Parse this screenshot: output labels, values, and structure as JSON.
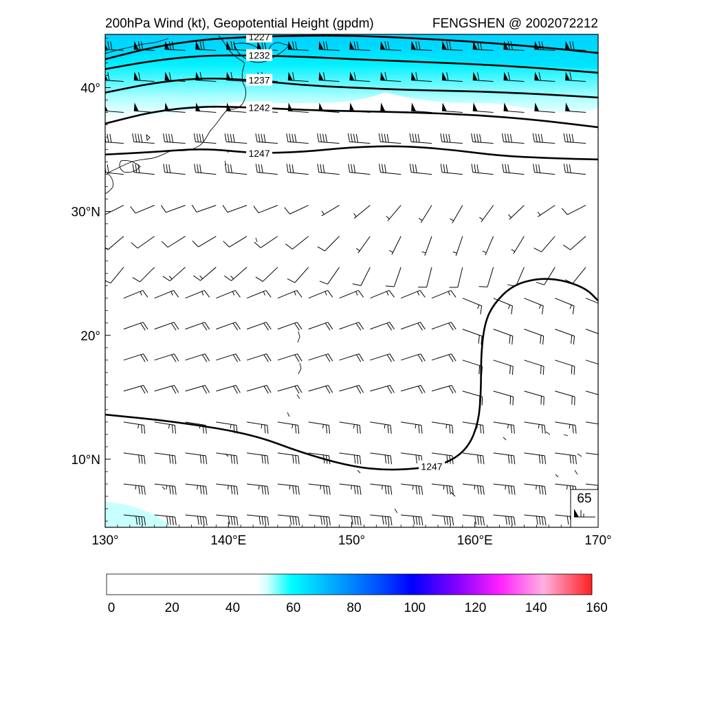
{
  "title_left": "200hPa Wind (kt), Geopotential Height (gpdm)",
  "title_right": "FENGSHEN @ 2002072212",
  "lon_ticks": [
    {
      "value": 130,
      "label": "130°"
    },
    {
      "value": 140,
      "label": "140°E"
    },
    {
      "value": 150,
      "label": "150°"
    },
    {
      "value": 160,
      "label": "160°E"
    },
    {
      "value": 170,
      "label": "170°"
    }
  ],
  "lat_ticks": [
    {
      "value": 40,
      "label": "40°"
    },
    {
      "value": 30,
      "label": "30°N"
    },
    {
      "value": 20,
      "label": "20°"
    },
    {
      "value": 10,
      "label": "10°N"
    }
  ],
  "map_extent": {
    "lon": [
      130,
      170
    ],
    "lat": [
      4.5,
      44.3
    ]
  },
  "contours": [
    {
      "level": 1227,
      "label": "1227",
      "points": [
        [
          130,
          42.3
        ],
        [
          134,
          43.3
        ],
        [
          138,
          43.9
        ],
        [
          142,
          44.1
        ],
        [
          146,
          44.2
        ],
        [
          150,
          44.2
        ],
        [
          155,
          44.0
        ],
        [
          160,
          43.7
        ],
        [
          165,
          43.3
        ],
        [
          170,
          42.8
        ]
      ]
    },
    {
      "level": 1232,
      "label": "1232",
      "points": [
        [
          130,
          41.5
        ],
        [
          134,
          42.2
        ],
        [
          138,
          42.6
        ],
        [
          142,
          42.6
        ],
        [
          146,
          42.5
        ],
        [
          150,
          42.3
        ],
        [
          155,
          42.1
        ],
        [
          160,
          41.9
        ],
        [
          165,
          41.6
        ],
        [
          170,
          41.2
        ]
      ]
    },
    {
      "level": 1237,
      "label": "1237",
      "points": [
        [
          130,
          39.6
        ],
        [
          134,
          40.4
        ],
        [
          138,
          40.8
        ],
        [
          142,
          40.6
        ],
        [
          146,
          40.2
        ],
        [
          150,
          40.0
        ],
        [
          155,
          39.8
        ],
        [
          160,
          39.7
        ],
        [
          165,
          39.5
        ],
        [
          170,
          39.2
        ]
      ]
    },
    {
      "level": 1242,
      "label": "1242",
      "points": [
        [
          130,
          37.1
        ],
        [
          134,
          38.1
        ],
        [
          138,
          38.5
        ],
        [
          142,
          38.4
        ],
        [
          146,
          38.2
        ],
        [
          150,
          38.1
        ],
        [
          155,
          38.0
        ],
        [
          160,
          37.8
        ],
        [
          165,
          37.4
        ],
        [
          170,
          36.8
        ]
      ]
    },
    {
      "level": 1247,
      "label": "1247",
      "points": [
        [
          130,
          34.6
        ],
        [
          134,
          34.8
        ],
        [
          138,
          35.1
        ],
        [
          142,
          34.7
        ],
        [
          146,
          34.8
        ],
        [
          150,
          35.2
        ],
        [
          154,
          35.3
        ],
        [
          158,
          35.0
        ],
        [
          162,
          34.5
        ],
        [
          166,
          34.3
        ],
        [
          170,
          34.2
        ]
      ]
    },
    {
      "level": 1247,
      "label": "1247",
      "points": [
        [
          130,
          13.6
        ],
        [
          136,
          13.0
        ],
        [
          142,
          12.0
        ],
        [
          146,
          10.5
        ],
        [
          150,
          9.4
        ],
        [
          153,
          9.1
        ],
        [
          156,
          9.3
        ],
        [
          158,
          9.8
        ],
        [
          159.5,
          11.0
        ],
        [
          160.3,
          13.0
        ],
        [
          160.5,
          15.5
        ],
        [
          160.5,
          18.5
        ],
        [
          160.8,
          21.0
        ],
        [
          161.5,
          22.5
        ],
        [
          163,
          24.0
        ],
        [
          165,
          24.6
        ],
        [
          167,
          24.5
        ],
        [
          169,
          23.8
        ],
        [
          170,
          22.8
        ]
      ]
    }
  ],
  "wind_speed_colorbar": {
    "ticks": [
      0,
      20,
      40,
      60,
      80,
      100,
      120,
      140,
      160
    ],
    "range": [
      0,
      160
    ],
    "white_below": 50,
    "colors": [
      "#ffffff",
      "#d8ffff",
      "#00ffff",
      "#00b0ff",
      "#0050ff",
      "#0000ff",
      "#7a00ff",
      "#ff00ff",
      "#ffb0e0",
      "#ff3030"
    ]
  },
  "reference_barb": {
    "label": "65",
    "speed_kt": 65
  },
  "wind_field_note_values": {
    "jet_max_speed_kt": 75
  }
}
